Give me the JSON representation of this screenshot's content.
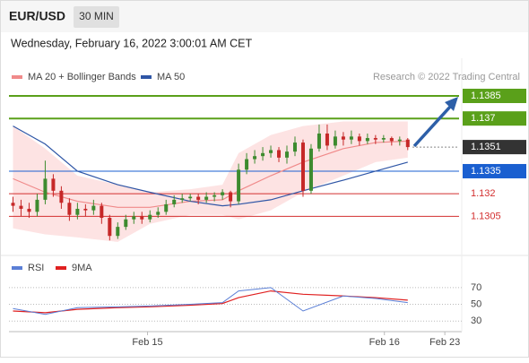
{
  "header": {
    "symbol": "EUR/USD",
    "interval": "30 MIN",
    "date": "Wednesday, February 16, 2022 3:00:01 AM CET"
  },
  "chart_data": [
    {
      "type": "candlestick",
      "source": "Research © 2022 Trading Central",
      "xlim": [
        -0.5,
        55.7
      ],
      "ylim": [
        1.1282,
        1.141
      ],
      "candles": {
        "up_color": "#3d8b2f",
        "down_color": "#c62828",
        "open": [
          1.1314,
          1.1312,
          1.131,
          1.1308,
          1.1316,
          1.133,
          1.1322,
          1.1314,
          1.1306,
          1.131,
          1.1309,
          1.1312,
          1.1304,
          1.1292,
          1.1298,
          1.1303,
          1.1305,
          1.1303,
          1.1306,
          1.1308,
          1.1313,
          1.1316,
          1.1317,
          1.1318,
          1.1316,
          1.1318,
          1.1319,
          1.1321,
          1.1315,
          1.1336,
          1.1343,
          1.1345,
          1.1347,
          1.1349,
          1.1344,
          1.1348,
          1.1354,
          1.1322,
          1.135,
          1.136,
          1.1352,
          1.1358,
          1.1356,
          1.1358,
          1.1355,
          1.1357,
          1.1356,
          1.1357,
          1.1355,
          1.1356
        ],
        "high": [
          1.1318,
          1.1316,
          1.1314,
          1.132,
          1.1342,
          1.1333,
          1.1325,
          1.1317,
          1.1314,
          1.1313,
          1.1316,
          1.1314,
          1.1306,
          1.1301,
          1.1306,
          1.1308,
          1.1308,
          1.1309,
          1.1311,
          1.1316,
          1.1319,
          1.132,
          1.132,
          1.132,
          1.1321,
          1.1321,
          1.1323,
          1.1322,
          1.134,
          1.1347,
          1.1349,
          1.1351,
          1.1352,
          1.1351,
          1.1352,
          1.1358,
          1.1356,
          1.1353,
          1.1366,
          1.1366,
          1.1362,
          1.1361,
          1.1362,
          1.136,
          1.136,
          1.1359,
          1.1359,
          1.1358,
          1.1358,
          1.1357
        ],
        "low": [
          1.1308,
          1.1305,
          1.1304,
          1.1305,
          1.1313,
          1.1318,
          1.131,
          1.1302,
          1.1303,
          1.1305,
          1.1306,
          1.13,
          1.1289,
          1.129,
          1.1296,
          1.13,
          1.13,
          1.1301,
          1.1304,
          1.1306,
          1.1311,
          1.1314,
          1.1315,
          1.1313,
          1.1314,
          1.1315,
          1.1316,
          1.1311,
          1.1313,
          1.1333,
          1.134,
          1.1342,
          1.1344,
          1.1341,
          1.134,
          1.1345,
          1.1318,
          1.132,
          1.1348,
          1.1349,
          1.135,
          1.1352,
          1.1353,
          1.1352,
          1.1353,
          1.1353,
          1.1354,
          1.1352,
          1.1352,
          1.1349
        ],
        "close": [
          1.1312,
          1.131,
          1.1308,
          1.1316,
          1.133,
          1.1322,
          1.1314,
          1.1306,
          1.131,
          1.1309,
          1.1312,
          1.1304,
          1.1292,
          1.1298,
          1.1303,
          1.1305,
          1.1303,
          1.1306,
          1.1308,
          1.1313,
          1.1316,
          1.1317,
          1.1318,
          1.1316,
          1.1318,
          1.1319,
          1.1321,
          1.1315,
          1.1336,
          1.1343,
          1.1345,
          1.1347,
          1.1349,
          1.1344,
          1.1348,
          1.1354,
          1.1322,
          1.135,
          1.136,
          1.1352,
          1.1358,
          1.1356,
          1.1358,
          1.1355,
          1.1357,
          1.1356,
          1.1357,
          1.1355,
          1.1356,
          1.1351
        ]
      },
      "series": [
        {
          "name": "MA 20 + Bollinger Bands",
          "color": "#f08a8a",
          "band_color": "#fde3e3",
          "x": [
            0,
            4,
            8,
            13,
            17,
            22,
            26,
            28,
            32,
            36,
            41,
            45,
            49
          ],
          "values": [
            1.133,
            1.1321,
            1.1315,
            1.1311,
            1.1311,
            1.1315,
            1.1316,
            1.1322,
            1.1332,
            1.1341,
            1.135,
            1.1354,
            1.1355
          ],
          "upper": [
            1.1365,
            1.135,
            1.1332,
            1.1326,
            1.1321,
            1.1323,
            1.1326,
            1.1347,
            1.1359,
            1.1365,
            1.1368,
            1.1368,
            1.1368
          ],
          "lower": [
            1.1297,
            1.1293,
            1.1291,
            1.1288,
            1.13,
            1.1306,
            1.1306,
            1.1303,
            1.1309,
            1.1321,
            1.1332,
            1.1341,
            1.1344
          ]
        },
        {
          "name": "MA 50",
          "color": "#2f56a6",
          "x": [
            0,
            4,
            8,
            13,
            17,
            22,
            26,
            28,
            32,
            36,
            41,
            45,
            49
          ],
          "values": [
            1.1365,
            1.1353,
            1.1335,
            1.1326,
            1.1321,
            1.1315,
            1.1312,
            1.1313,
            1.1316,
            1.1322,
            1.1329,
            1.1335,
            1.1341
          ]
        }
      ],
      "levels": [
        {
          "value": 1.1385,
          "color": "#5aa01a",
          "line_style": "solid",
          "boxed": true
        },
        {
          "value": 1.137,
          "color": "#5aa01a",
          "line_style": "solid",
          "boxed": true
        },
        {
          "value": 1.1351,
          "color": "#333333",
          "line_style": "dotted",
          "boxed": true
        },
        {
          "value": 1.1335,
          "color": "#1a5fd0",
          "line_style": "solid",
          "boxed": true
        },
        {
          "value": 1.132,
          "color": "#d32f2f",
          "line_style": "solid",
          "boxed": false
        },
        {
          "value": 1.1305,
          "color": "#d32f2f",
          "line_style": "solid",
          "boxed": false
        }
      ]
    },
    {
      "type": "line",
      "xlim": [
        -0.5,
        55.7
      ],
      "ylim": [
        12,
        87
      ],
      "yticks": [
        30,
        50,
        70
      ],
      "xticks": [
        {
          "value": 16.7,
          "label": "Feb 15"
        },
        {
          "value": 46.1,
          "label": "Feb 16"
        },
        {
          "value": 53.6,
          "label": "Feb 23"
        }
      ],
      "series": [
        {
          "name": "RSI",
          "color": "#5b7fd6",
          "x": [
            0,
            4,
            8,
            13,
            17,
            22,
            26,
            28,
            32,
            36,
            41,
            45,
            49
          ],
          "values": [
            45,
            38,
            46,
            47,
            48,
            50,
            52,
            66,
            70,
            42,
            60,
            57,
            52
          ]
        },
        {
          "name": "9MA",
          "color": "#e02020",
          "x": [
            0,
            4,
            8,
            13,
            17,
            22,
            26,
            28,
            32,
            36,
            41,
            45,
            49
          ],
          "values": [
            42,
            40,
            44,
            46,
            47,
            49,
            51,
            58,
            66,
            62,
            60,
            58,
            55
          ]
        }
      ]
    }
  ]
}
